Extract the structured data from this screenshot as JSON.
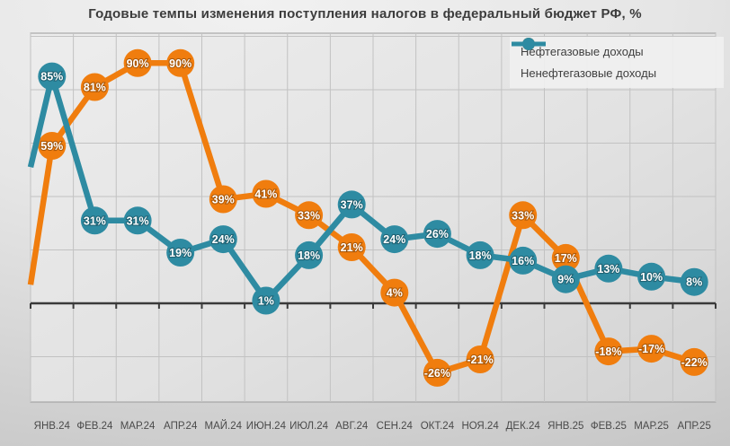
{
  "title": "Годовые темпы изменения поступления налогов в федеральный бюджет РФ, %",
  "legend": {
    "position": "top-right",
    "items": [
      {
        "label": "Нефтегазовые доходы"
      },
      {
        "label": "Ненефтегазовые доходы"
      }
    ]
  },
  "chart_data": {
    "type": "line",
    "title": "Годовые темпы изменения поступления налогов в федеральный бюджет РФ, %",
    "categories": [
      "ЯНВ.24",
      "ФЕВ.24",
      "МАР.24",
      "АПР.24",
      "МАЙ.24",
      "ИЮН.24",
      "ИЮЛ.24",
      "АВГ.24",
      "СЕН.24",
      "ОКТ.24",
      "НОЯ.24",
      "ДЕК.24",
      "ЯНВ.25",
      "ФЕВ.25",
      "МАР.25",
      "АПР.25"
    ],
    "series": [
      {
        "name": "Нефтегазовые доходы",
        "color": "#F07D0E",
        "values": [
          59,
          81,
          90,
          90,
          39,
          41,
          33,
          21,
          4,
          -26,
          -21,
          33,
          17,
          -18,
          -17,
          -22
        ],
        "lead_in_edge_value": 7
      },
      {
        "name": "Ненефтегазовые доходы",
        "color": "#2E8BA2",
        "values": [
          85,
          31,
          31,
          19,
          24,
          1,
          18,
          37,
          24,
          26,
          18,
          16,
          9,
          13,
          10,
          8
        ],
        "lead_in_edge_value": 51
      }
    ],
    "label_suffix": "%",
    "data_labels": "on, centered in markers, white bold",
    "ylim": [
      -37,
      101
    ],
    "y_gridline_values": [
      -20,
      20,
      40,
      60,
      80,
      100
    ],
    "zero_axis": true,
    "grid": "on",
    "legend_position": "top-right",
    "colors": {
      "gridline": "#c2c2c2",
      "zero_axis": "#3a3a3a",
      "plot_border": "#9a9a9a",
      "axis_label": "#4a4a4a",
      "title_text": "#3c3c3c",
      "data_label_text": "#ffffff"
    }
  }
}
